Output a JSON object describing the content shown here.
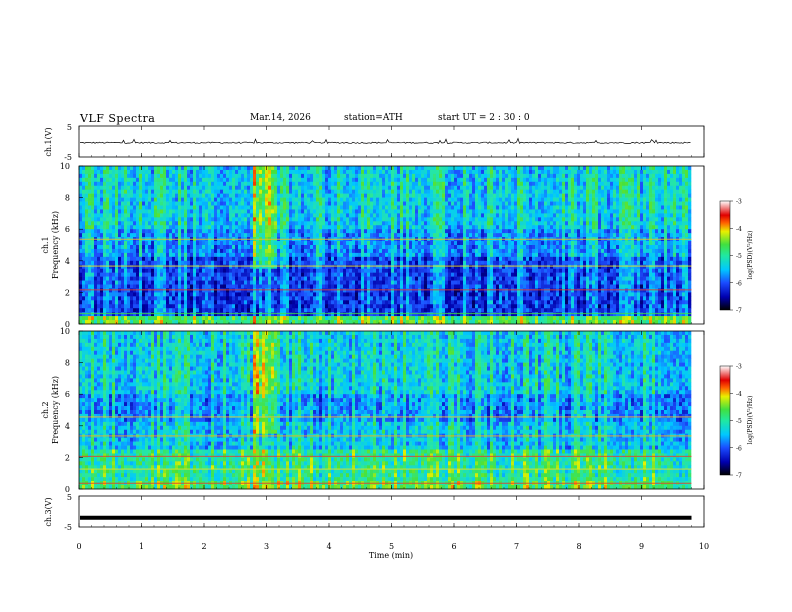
{
  "header": {
    "title": "VLF  Spectra",
    "date": "Mar.14, 2026",
    "station": "station=ATH",
    "start_ut": "start  UT =   2 : 30 : 0"
  },
  "chart_data": [
    {
      "type": "line",
      "name": "channel-1-waveform",
      "ylabel": "ch.1(V)",
      "ylim": [
        -5,
        5
      ],
      "yticks": [
        "5",
        "-5"
      ],
      "xlim": [
        0,
        9.8
      ],
      "series_description": "noisy signal around -0.4 V with spikes to about +0.6 V"
    },
    {
      "type": "heatmap",
      "name": "channel-1-spectrogram",
      "ylabel_top": "ch.1",
      "ylabel": "Frequency  (kHz)",
      "ylim": [
        0,
        10
      ],
      "yticks": [
        "0",
        "2",
        "4",
        "6",
        "8",
        "10"
      ],
      "xlim": [
        0,
        9.8
      ],
      "colorbar": {
        "label": "log(PSD)(V²/Hz)",
        "range": [
          -7,
          -3
        ],
        "ticks": [
          "-3",
          "-4",
          "-5",
          "-6",
          "-7"
        ]
      }
    },
    {
      "type": "heatmap",
      "name": "channel-2-spectrogram",
      "ylabel_top": "ch.2",
      "ylabel": "Frequency  (kHz)",
      "ylim": [
        0,
        10
      ],
      "yticks": [
        "0",
        "2",
        "4",
        "6",
        "8",
        "10"
      ],
      "xlim": [
        0,
        9.8
      ],
      "colorbar": {
        "label": "log(PSD)(V²/Hz)",
        "range": [
          -7,
          -3
        ],
        "ticks": [
          "-3",
          "-4",
          "-5",
          "-6",
          "-7"
        ]
      }
    },
    {
      "type": "line",
      "name": "channel-3-waveform",
      "ylabel": "ch.3(V)",
      "ylim": [
        -5,
        5
      ],
      "yticks": [
        "5",
        "-5"
      ],
      "xlim": [
        0,
        9.8
      ],
      "series_description": "flat thick line at about -2 V"
    }
  ],
  "x_axis": {
    "label": "Time  (min)",
    "range": [
      0,
      10
    ],
    "ticks": [
      "0",
      "1",
      "2",
      "3",
      "4",
      "5",
      "6",
      "7",
      "8",
      "9",
      "10"
    ]
  }
}
